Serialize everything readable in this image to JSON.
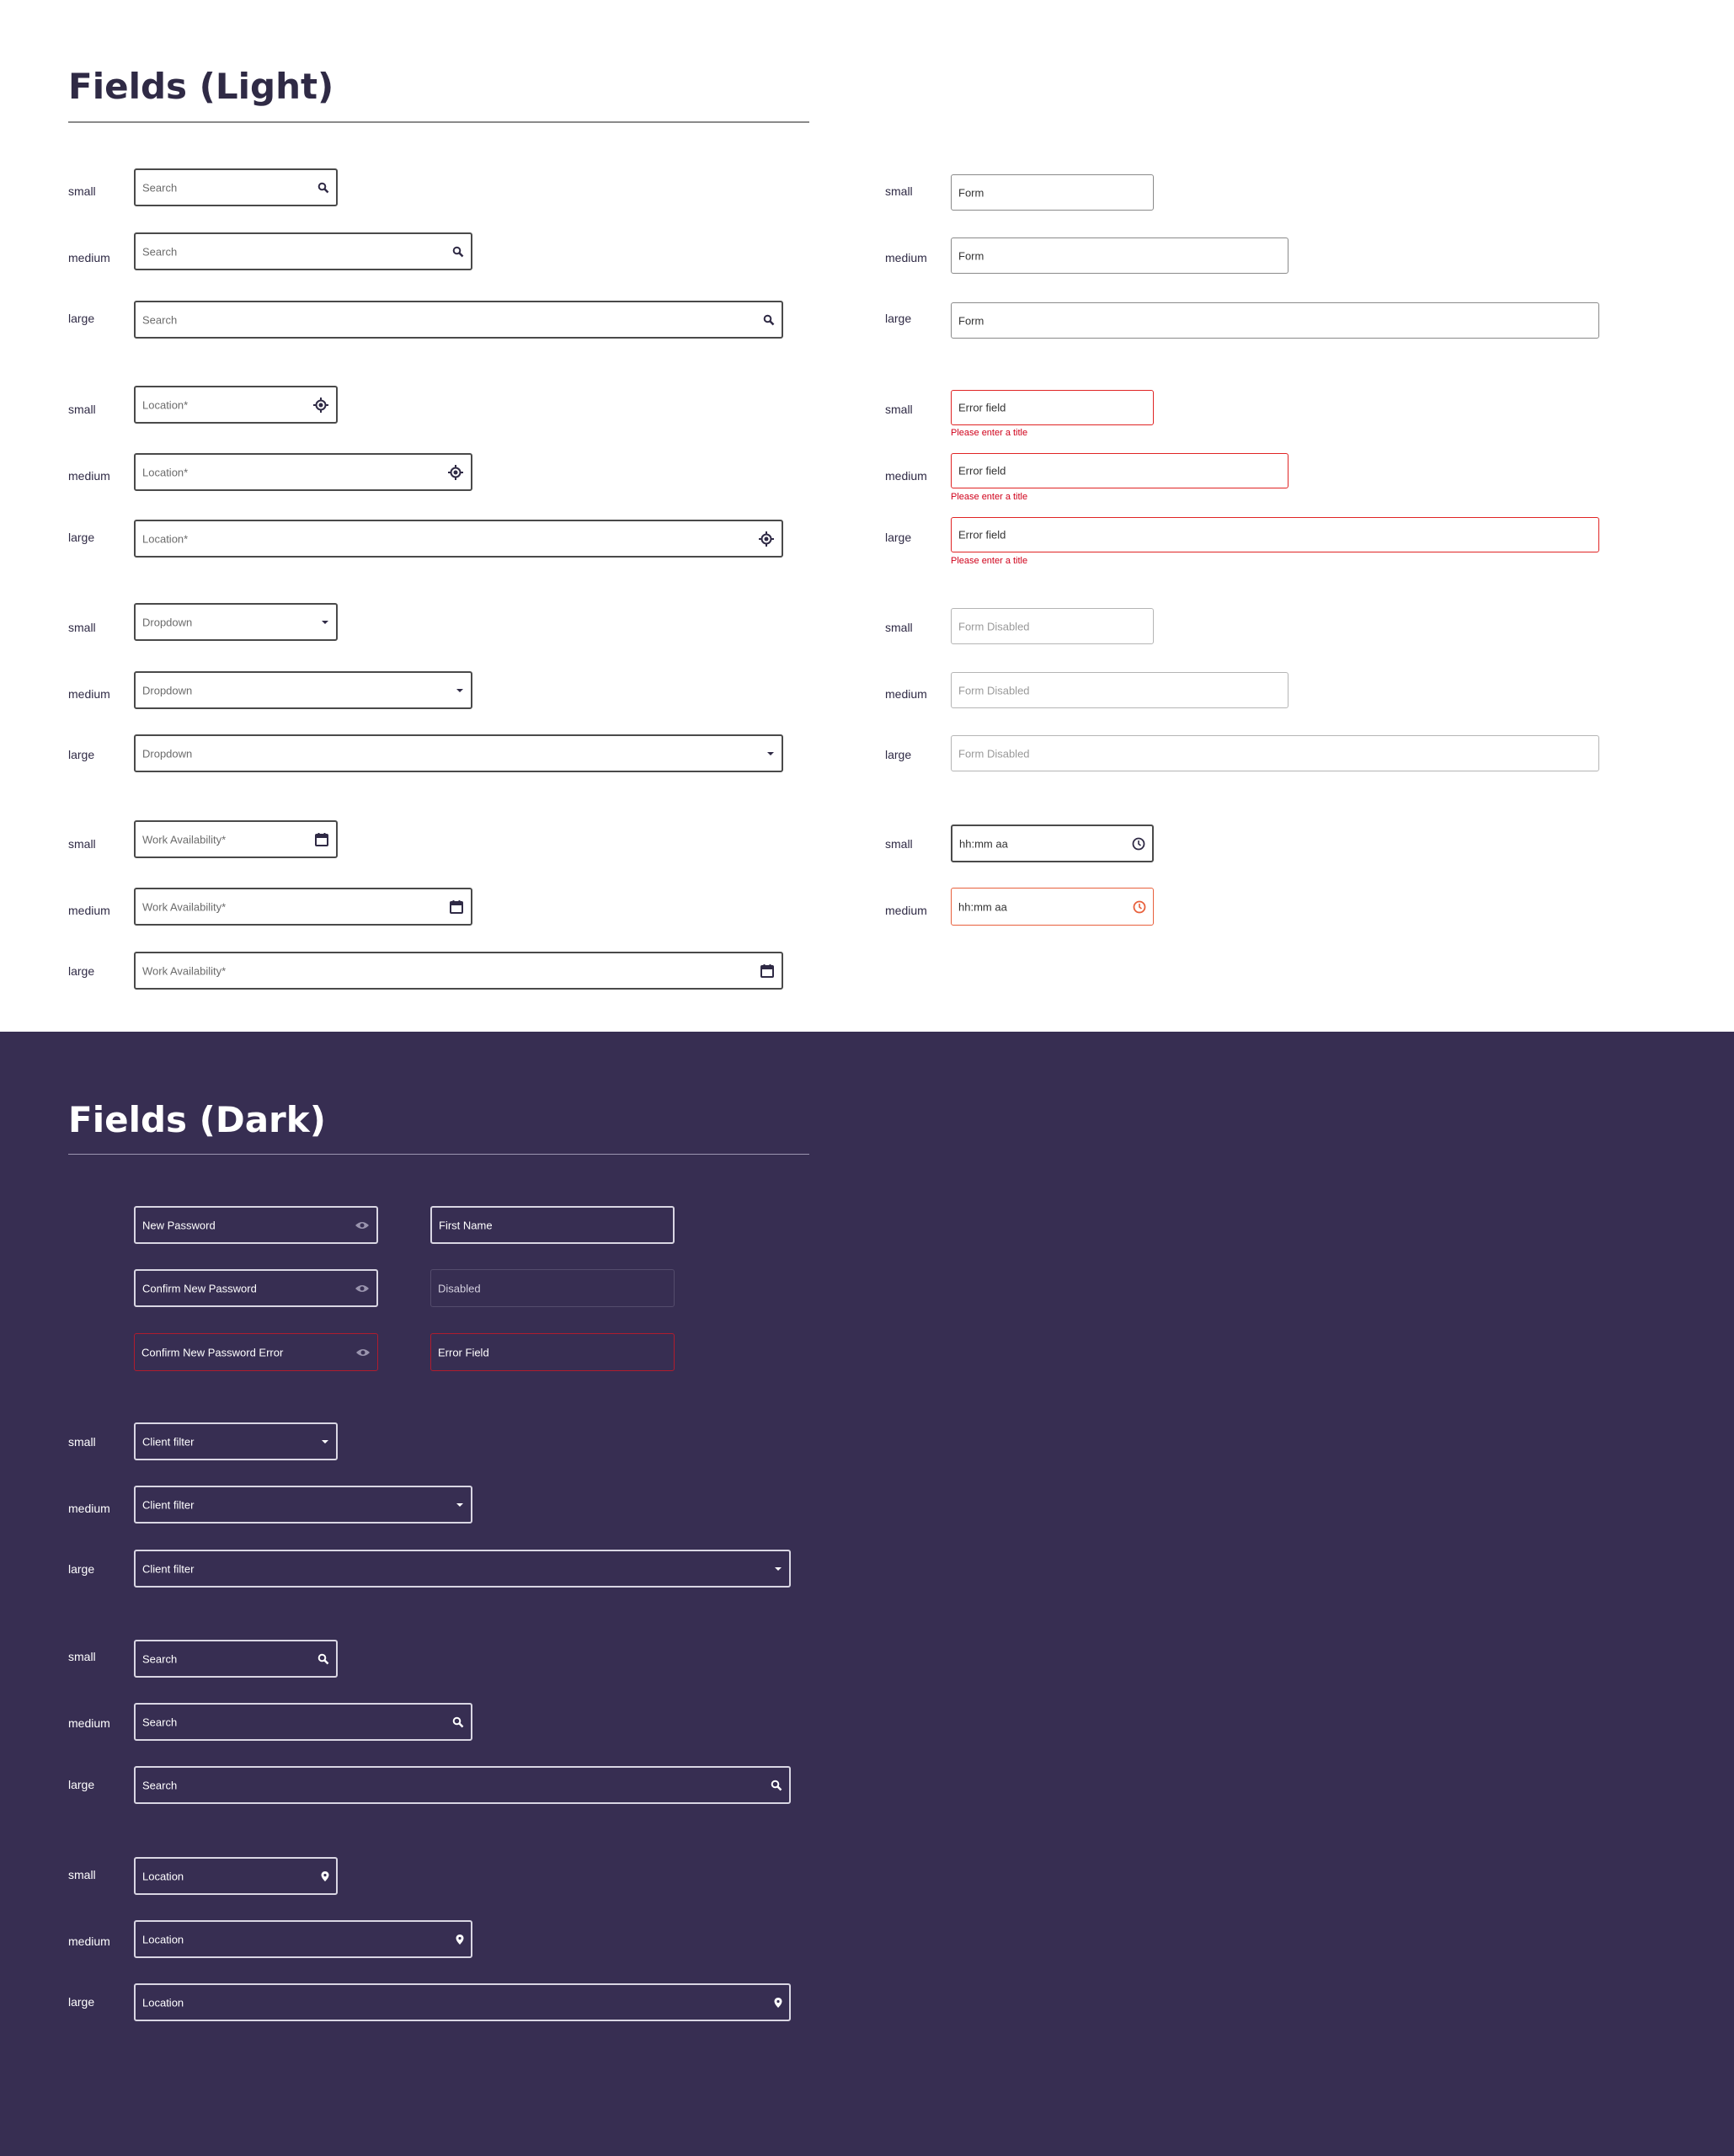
{
  "light": {
    "title": "Fields (Light)",
    "sizes": [
      "small",
      "medium",
      "large"
    ],
    "search_placeholder": "Search",
    "location_placeholder": "Location*",
    "dropdown_placeholder": "Dropdown",
    "work_placeholder": "Work Availability*",
    "form_value": "Form",
    "error_value": "Error field",
    "error_message": "Please enter a title",
    "disabled_placeholder": "Form Disabled",
    "time_placeholder": "hh:mm aa"
  },
  "dark": {
    "title": "Fields (Dark)",
    "sizes": [
      "small",
      "medium",
      "large"
    ],
    "new_password": "New Password",
    "confirm_password": "Confirm New Password",
    "confirm_password_error": "Confirm New Password Error",
    "first_name": "First Name",
    "disabled": "Disabled",
    "error_field": "Error Field",
    "client_filter": "Client filter",
    "search": "Search",
    "location": "Location"
  },
  "colors": {
    "light_bg": "#ffffff",
    "dark_bg": "#372e52",
    "title_light": "#2f2a45",
    "error_red": "#e02424",
    "time_error_orange": "#e8603c",
    "disabled_border": "#b5b5b5",
    "dark_error_border": "#b01c2e"
  },
  "icons": {
    "search": "search-icon",
    "location_light": "location-target-icon",
    "dropdown": "chevron-down-icon",
    "calendar": "calendar-icon",
    "clock": "clock-icon",
    "eye": "eye-icon",
    "location_dark": "map-pin-icon"
  }
}
